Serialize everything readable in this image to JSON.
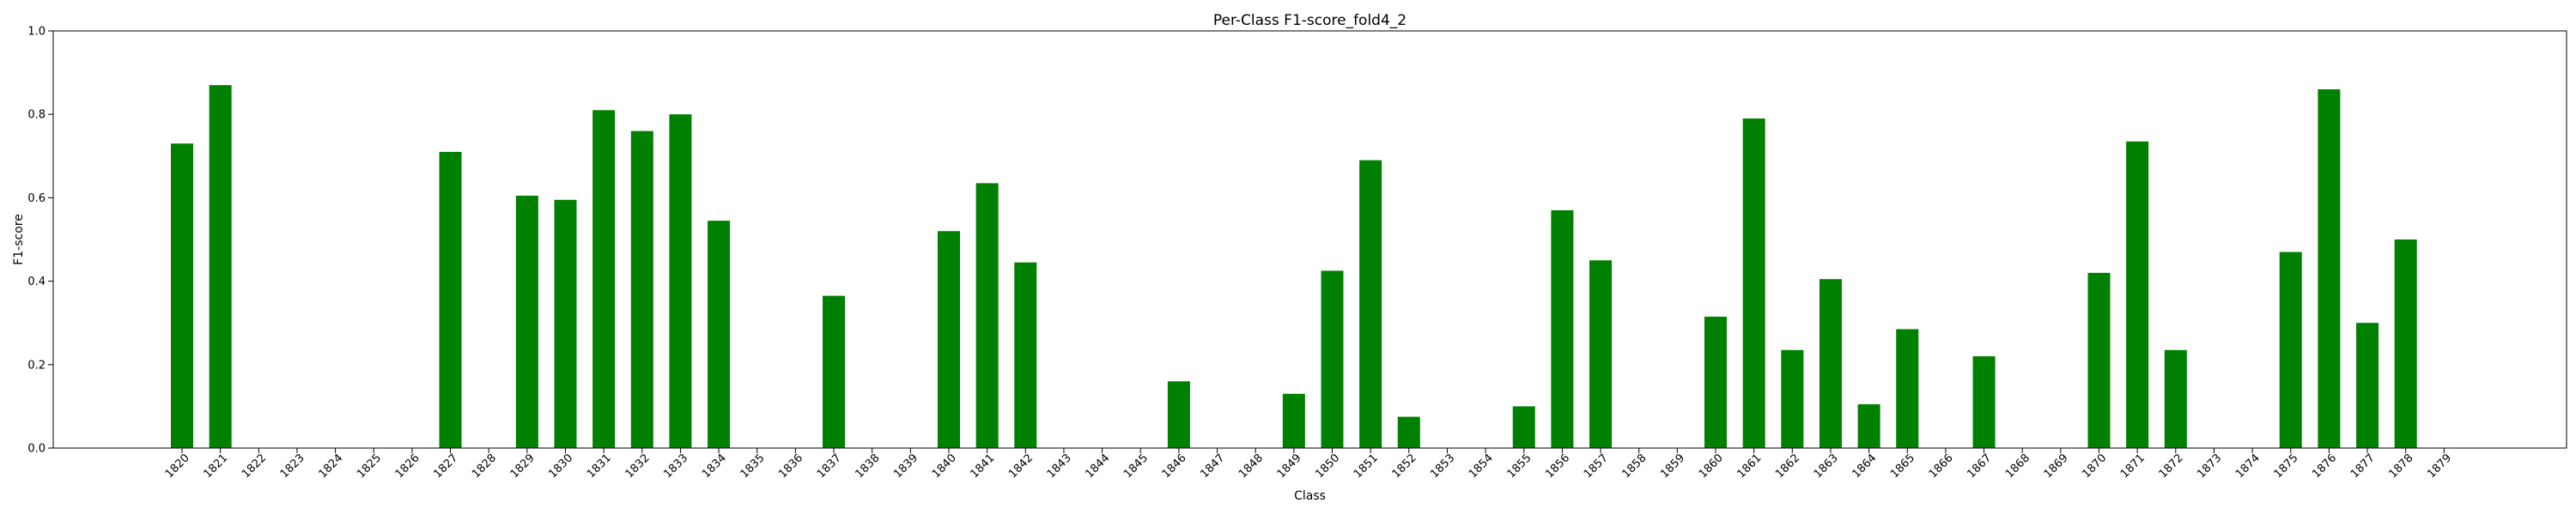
{
  "chart_data": {
    "type": "bar",
    "title": "Per-Class F1-score_fold4_2",
    "xlabel": "Class",
    "ylabel": "F1-score",
    "ylim": [
      0,
      1.0
    ],
    "yticks": [
      "0.0",
      "0.2",
      "0.4",
      "0.6",
      "0.8",
      "1.0"
    ],
    "grid": false,
    "bar_color": "#008000",
    "categories": [
      "1820",
      "1821",
      "1822",
      "1823",
      "1824",
      "1825",
      "1826",
      "1827",
      "1828",
      "1829",
      "1830",
      "1831",
      "1832",
      "1833",
      "1834",
      "1835",
      "1836",
      "1837",
      "1838",
      "1839",
      "1840",
      "1841",
      "1842",
      "1843",
      "1844",
      "1845",
      "1846",
      "1847",
      "1848",
      "1849",
      "1850",
      "1851",
      "1852",
      "1853",
      "1854",
      "1855",
      "1856",
      "1857",
      "1858",
      "1859",
      "1860",
      "1861",
      "1862",
      "1863",
      "1864",
      "1865",
      "1866",
      "1867",
      "1868",
      "1869",
      "1870",
      "1871",
      "1872",
      "1873",
      "1874",
      "1875",
      "1876",
      "1877",
      "1878",
      "1879"
    ],
    "values": [
      0.73,
      0.87,
      0,
      0,
      0,
      0,
      0,
      0.71,
      0,
      0.605,
      0.595,
      0.81,
      0.76,
      0.8,
      0.545,
      0,
      0,
      0.365,
      0,
      0,
      0.52,
      0.635,
      0.445,
      0,
      0,
      0,
      0.16,
      0,
      0,
      0.13,
      0.425,
      0.69,
      0.075,
      0,
      0,
      0.1,
      0.57,
      0.45,
      0,
      0,
      0.315,
      0.79,
      0.235,
      0.405,
      0.105,
      0.285,
      0,
      0.22,
      0,
      0,
      0.42,
      0.735,
      0.235,
      0,
      0,
      0.47,
      0.86,
      0.3,
      0.5,
      0
    ]
  }
}
